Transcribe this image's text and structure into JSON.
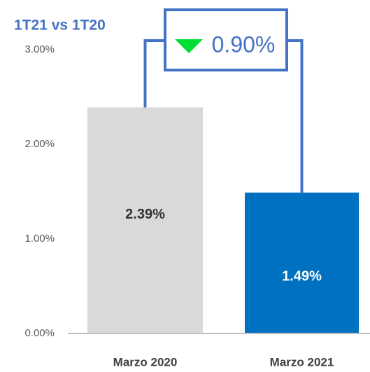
{
  "chart_data": {
    "type": "bar",
    "title": "1T21 vs 1T20",
    "categories": [
      "Marzo 2020",
      "Marzo 2021"
    ],
    "values": [
      2.39,
      1.49
    ],
    "value_labels": [
      "2.39%",
      "1.49%"
    ],
    "colors": [
      "#d9d9d9",
      "#0070c0"
    ],
    "value_label_colors": [
      "#333333",
      "#ffffff"
    ],
    "ylim": [
      0,
      3
    ],
    "yticks": [
      {
        "value": 0,
        "label": "0.00%"
      },
      {
        "value": 1,
        "label": "1.00%"
      },
      {
        "value": 2,
        "label": "2.00%"
      },
      {
        "value": 3,
        "label": "3.00%"
      }
    ],
    "grid": false,
    "annotation": "0.90%"
  }
}
